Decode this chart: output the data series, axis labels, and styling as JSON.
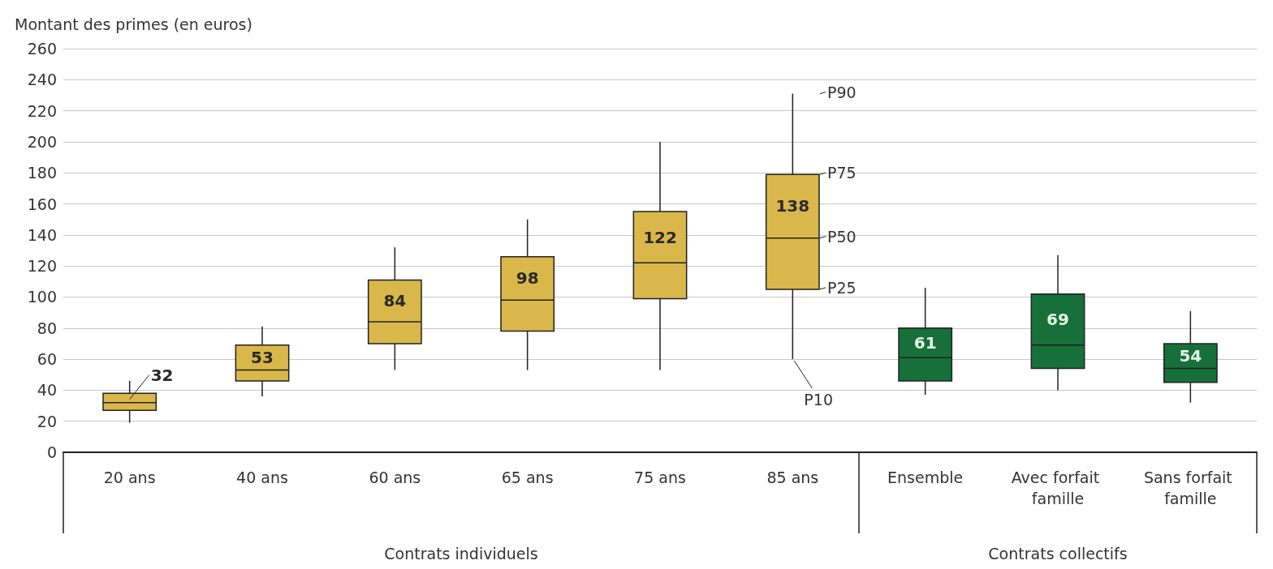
{
  "chart_data": {
    "type": "box",
    "ylabel": "Montant des primes (en euros)",
    "categories": [
      "20 ans",
      "40 ans",
      "60 ans",
      "65 ans",
      "75 ans",
      "85 ans",
      "Ensemble",
      "Avec forfait famille",
      "Sans forfait famille"
    ],
    "series": [
      {
        "color": "#d9b74a",
        "boxes": [
          {
            "low": 19,
            "q1": 27,
            "median": 32,
            "q3": 38,
            "high": 46
          },
          {
            "low": 36,
            "q1": 46,
            "median": 53,
            "q3": 69,
            "high": 81
          },
          {
            "low": 53,
            "q1": 70,
            "median": 84,
            "q3": 111,
            "high": 132
          },
          {
            "low": 53,
            "q1": 78,
            "median": 98,
            "q3": 126,
            "high": 150
          },
          {
            "low": 53,
            "q1": 99,
            "median": 122,
            "q3": 155,
            "high": 200
          },
          {
            "low": 60,
            "q1": 105,
            "median": 138,
            "q3": 179,
            "high": 231
          },
          null,
          null,
          null
        ],
        "value_labels": [
          "32",
          "53",
          "84",
          "98",
          "122",
          "138",
          null,
          null,
          null
        ]
      },
      {
        "color": "#17703a",
        "boxes": [
          null,
          null,
          null,
          null,
          null,
          null,
          {
            "low": 37,
            "q1": 46,
            "median": 61,
            "q3": 80,
            "high": 106
          },
          {
            "low": 40,
            "q1": 54,
            "median": 69,
            "q3": 102,
            "high": 127
          },
          {
            "low": 32,
            "q1": 45,
            "median": 54,
            "q3": 70,
            "high": 91
          }
        ],
        "value_labels": [
          null,
          null,
          null,
          null,
          null,
          null,
          "61",
          "69",
          "54"
        ]
      }
    ],
    "ylim": [
      0,
      260
    ],
    "yticks": [
      0,
      20,
      40,
      60,
      80,
      100,
      120,
      140,
      160,
      180,
      200,
      220,
      240,
      260
    ],
    "grid": "y",
    "annotations": [
      "Contrats individuels",
      "Contrats collectifs",
      {
        "text": "P90",
        "x": "85 ans",
        "y": 231
      },
      {
        "text": "P75",
        "x": "85 ans",
        "y": 179
      },
      {
        "text": "P50",
        "x": "85 ans",
        "y": 138
      },
      {
        "text": "P25",
        "x": "85 ans",
        "y": 105
      },
      {
        "text": "P10",
        "x": "85 ans",
        "y": 60
      }
    ]
  }
}
